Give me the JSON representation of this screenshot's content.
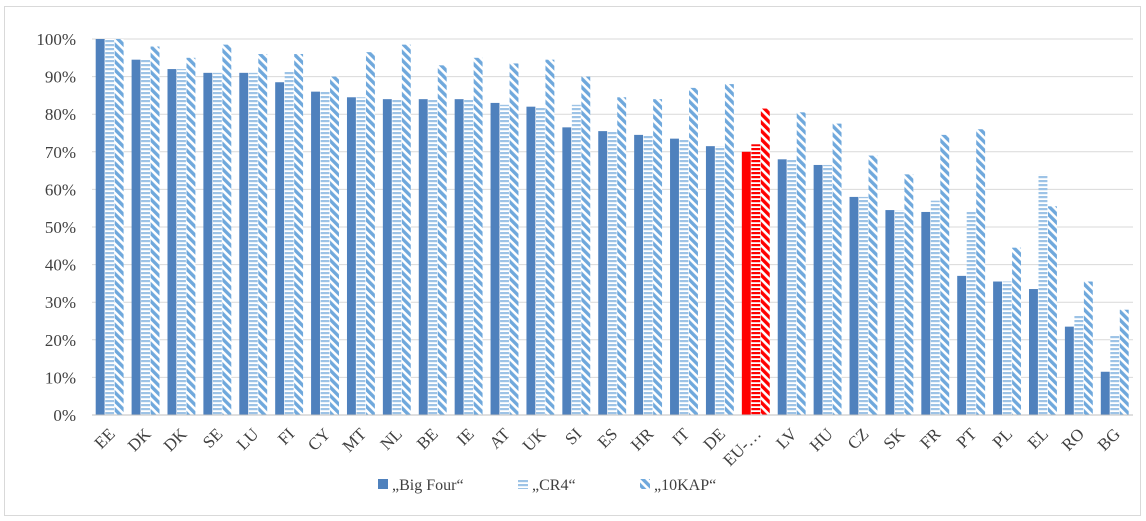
{
  "chart_data": {
    "type": "bar",
    "categories": [
      "EE",
      "DK",
      "DK",
      "SE",
      "LU",
      "FI",
      "CY",
      "MT",
      "NL",
      "BE",
      "IE",
      "AT",
      "UK",
      "SI",
      "ES",
      "HR",
      "IT",
      "DE",
      "EU-…",
      "LV",
      "HU",
      "CZ",
      "SK",
      "FR",
      "PT",
      "PL",
      "EL",
      "RO",
      "BG"
    ],
    "highlight_category_index": 18,
    "highlight_color": "#ff0000",
    "series": [
      {
        "name": "„Big Four“",
        "color": "#4f81bd",
        "pattern": "solid",
        "values": [
          100,
          94.5,
          92,
          91,
          91,
          88.5,
          86,
          84.5,
          84,
          84,
          84,
          83,
          82,
          76.5,
          75.5,
          74.5,
          73.5,
          71.5,
          70,
          68,
          66.5,
          58,
          54.5,
          54,
          37,
          35.5,
          33.5,
          23.5,
          11.5
        ]
      },
      {
        "name": "„CR4“",
        "color": "#9dc3e6",
        "pattern": "horizontal",
        "values": [
          100,
          94.5,
          92,
          91,
          91,
          91.5,
          86,
          84.5,
          84,
          84,
          84,
          82.5,
          82,
          82.5,
          75.5,
          74.5,
          73.5,
          71.5,
          72,
          68,
          66.5,
          58,
          54.5,
          57,
          54,
          35.5,
          64,
          26.5,
          21
        ]
      },
      {
        "name": "„10KAP“",
        "color": "#6fa8dc",
        "pattern": "diagonal",
        "values": [
          100,
          98,
          95,
          98.5,
          96,
          96,
          90,
          96.5,
          98.5,
          93,
          95,
          93.5,
          94.5,
          90,
          84.5,
          84,
          87,
          88,
          81.5,
          80.5,
          77.5,
          69,
          64,
          74.5,
          76,
          44.5,
          55.5,
          35.5,
          28
        ]
      }
    ],
    "yticks": [
      "0%",
      "10%",
      "20%",
      "30%",
      "40%",
      "50%",
      "60%",
      "70%",
      "80%",
      "90%",
      "100%"
    ],
    "ylim": [
      0,
      100
    ],
    "grid": true,
    "legend_position": "bottom",
    "title": "",
    "xlabel": "",
    "ylabel": ""
  }
}
